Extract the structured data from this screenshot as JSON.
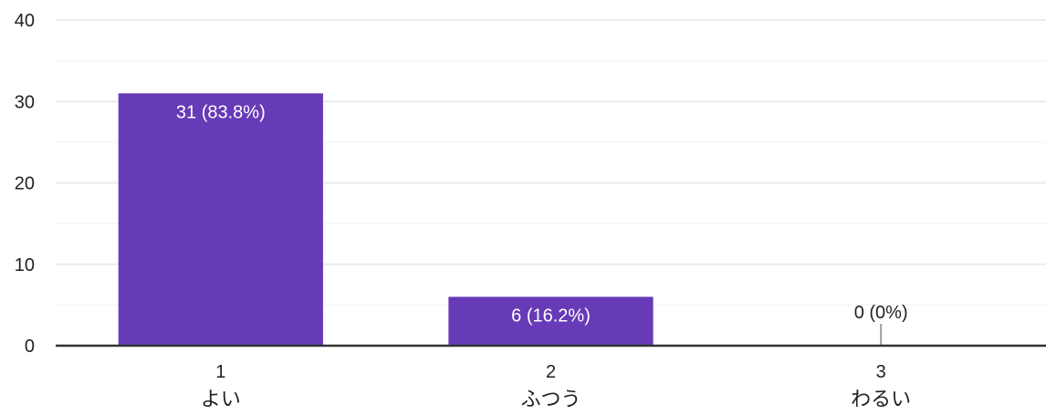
{
  "chart_data": {
    "type": "bar",
    "categories": [
      {
        "number": "1",
        "name": "よい"
      },
      {
        "number": "2",
        "name": "ふつう"
      },
      {
        "number": "3",
        "name": "わるい"
      }
    ],
    "values": [
      31,
      6,
      0
    ],
    "data_labels": [
      "31 (83.8%)",
      "6 (16.2%)",
      "0 (0%)"
    ],
    "ylim": [
      0,
      40
    ],
    "yticks": [
      "0",
      "10",
      "20",
      "30",
      "40"
    ],
    "grid": true,
    "minor_grid": true,
    "title": "",
    "xlabel": "",
    "ylabel": "",
    "colors": {
      "bar": "#673ab7",
      "label_inside": "#ffffff",
      "label_outside": "#222222",
      "gridline": "#ebebeb",
      "minor_gridline": "#f5f5f5",
      "baseline": "#333333",
      "zero_marker": "#9e9e9e"
    }
  }
}
